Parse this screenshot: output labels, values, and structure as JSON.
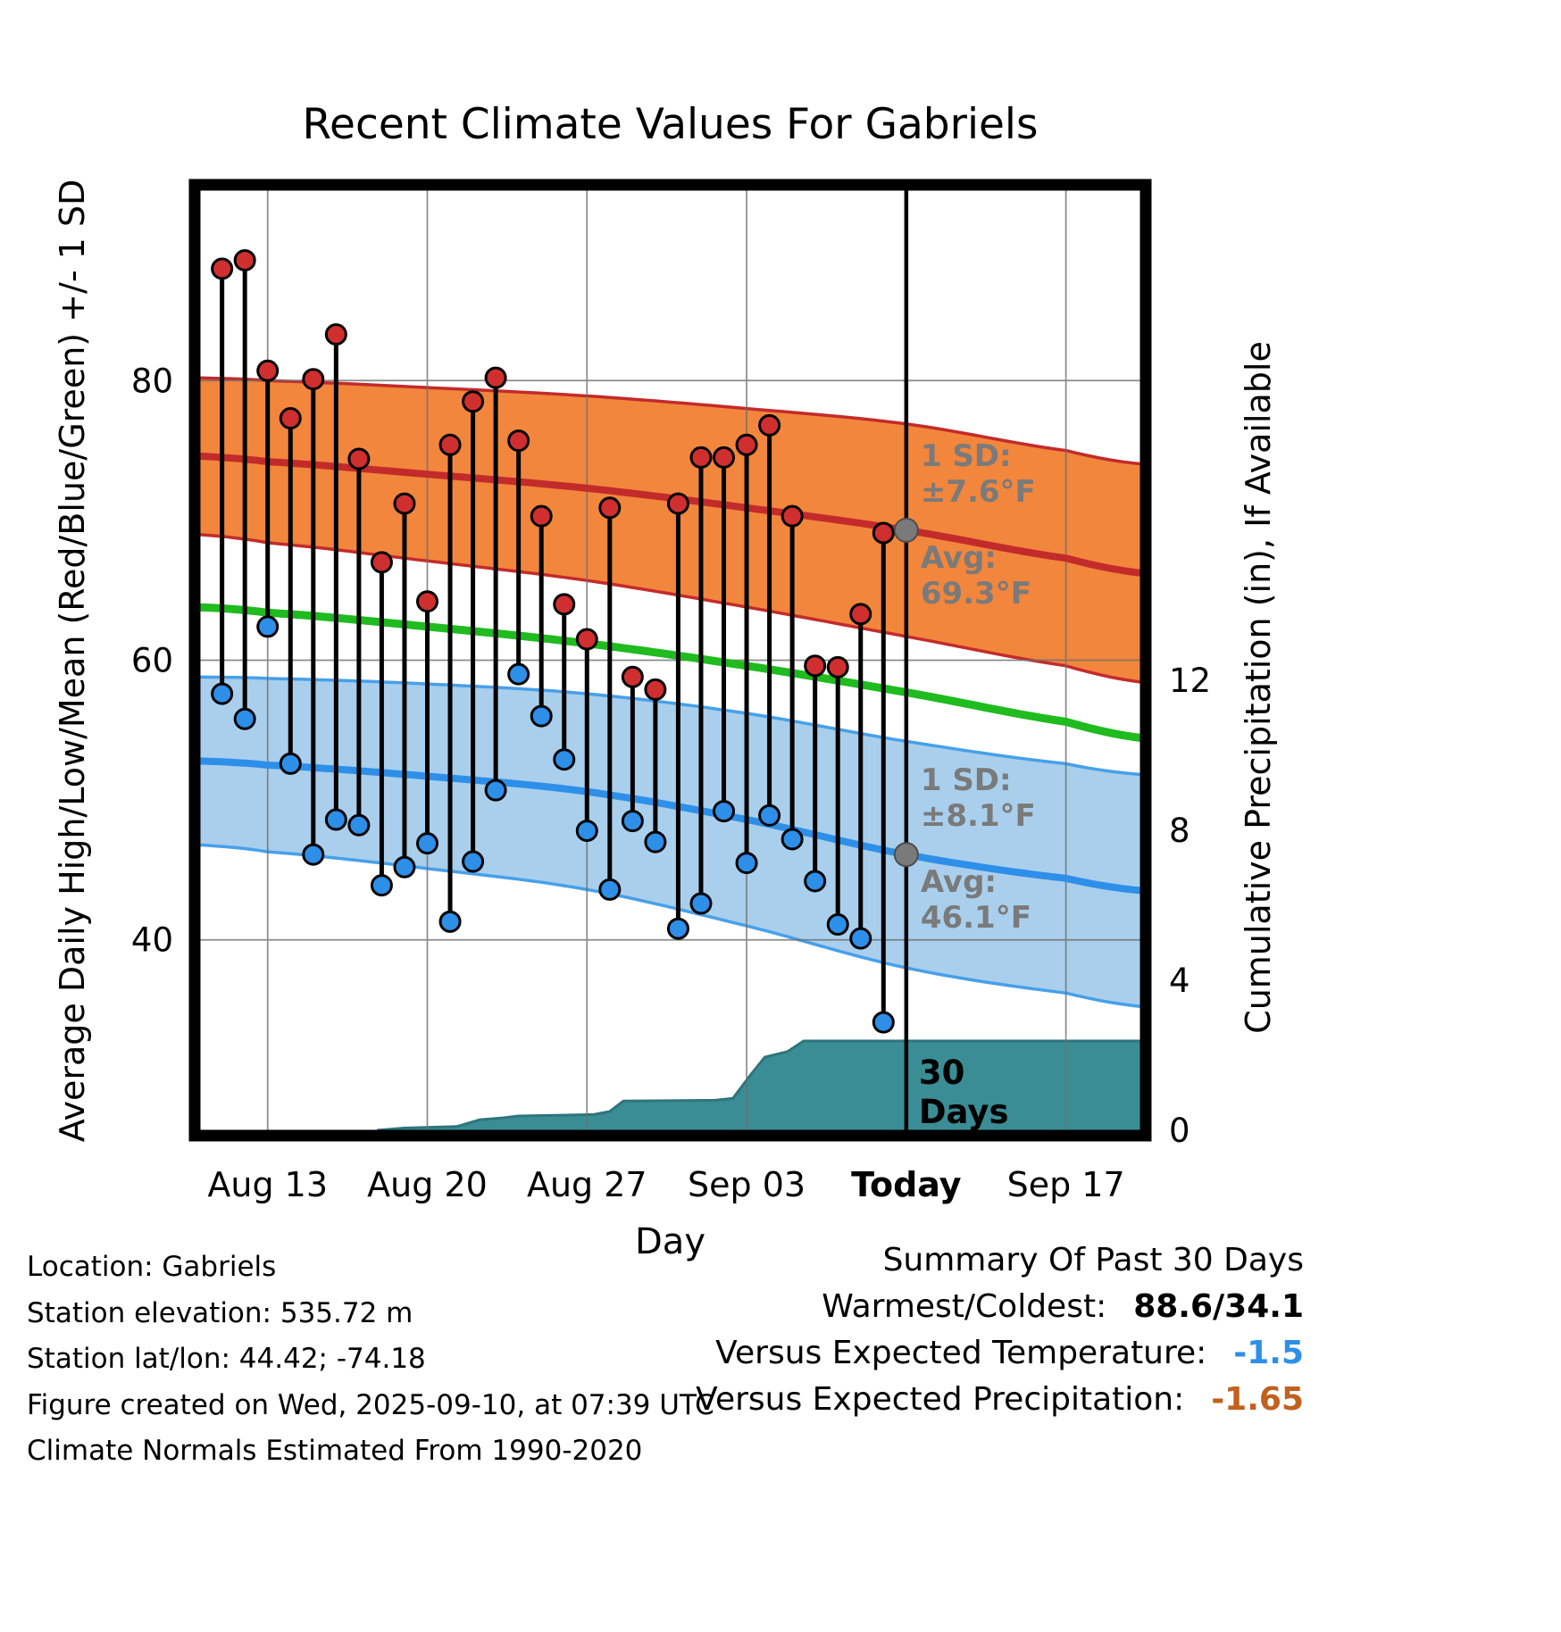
{
  "chart_data": {
    "type": "line",
    "title": "Recent Climate Values For Gabriels",
    "xlabel": "Day",
    "ylabel_left": "Average Daily High/Low/Mean (Red/Blue/Green) +/- 1 SD",
    "ylabel_right": "Cumulative Precipitation (in), If Available",
    "x_ticks": [
      {
        "label": "Aug 13",
        "d": 2,
        "bold": false
      },
      {
        "label": "Aug 20",
        "d": 9,
        "bold": false
      },
      {
        "label": "Aug 27",
        "d": 16,
        "bold": false
      },
      {
        "label": "Sep 03",
        "d": 23,
        "bold": false
      },
      {
        "label": "Today",
        "d": 30,
        "bold": true
      },
      {
        "label": "Sep 17",
        "d": 37,
        "bold": false
      }
    ],
    "temp_axis": {
      "min": 26,
      "max": 94,
      "ticks": [
        80,
        60,
        40
      ]
    },
    "precip_axis": {
      "ticks": [
        12,
        8,
        4,
        0
      ]
    },
    "daily": {
      "dates": [
        "Aug 11",
        "Aug 12",
        "Aug 13",
        "Aug 14",
        "Aug 15",
        "Aug 16",
        "Aug 17",
        "Aug 18",
        "Aug 19",
        "Aug 20",
        "Aug 21",
        "Aug 22",
        "Aug 23",
        "Aug 24",
        "Aug 25",
        "Aug 26",
        "Aug 27",
        "Aug 28",
        "Aug 29",
        "Aug 30",
        "Aug 31",
        "Sep 01",
        "Sep 02",
        "Sep 03",
        "Sep 04",
        "Sep 05",
        "Sep 06",
        "Sep 07",
        "Sep 08",
        "Sep 09"
      ],
      "high": [
        88.0,
        88.6,
        80.7,
        77.3,
        80.1,
        83.3,
        74.4,
        67.0,
        71.2,
        64.2,
        75.4,
        78.5,
        80.2,
        75.7,
        70.3,
        64.0,
        61.5,
        70.9,
        58.8,
        57.9,
        71.2,
        74.5,
        74.5,
        75.4,
        76.8,
        70.3,
        59.6,
        59.5,
        63.3,
        69.1
      ],
      "low": [
        57.6,
        55.8,
        62.4,
        52.6,
        46.1,
        48.6,
        48.2,
        43.9,
        45.2,
        46.9,
        41.3,
        45.6,
        50.7,
        59.0,
        56.0,
        52.9,
        47.8,
        43.6,
        48.5,
        47.0,
        40.8,
        42.6,
        49.2,
        45.5,
        48.9,
        47.2,
        44.2,
        41.1,
        40.1,
        34.1
      ]
    },
    "normals": {
      "d": [
        -1.2,
        2,
        9,
        16,
        23,
        30,
        37,
        40.5
      ],
      "high_upper": [
        80.2,
        80.0,
        79.5,
        78.9,
        78.0,
        76.9,
        75.0,
        74.0
      ],
      "high_avg": [
        74.6,
        74.2,
        73.3,
        72.3,
        70.9,
        69.3,
        67.3,
        66.2
      ],
      "high_lower": [
        69.0,
        68.4,
        67.1,
        65.7,
        63.8,
        61.7,
        59.6,
        58.4
      ],
      "mean": [
        63.8,
        63.4,
        62.4,
        61.2,
        59.6,
        57.7,
        55.6,
        54.4
      ],
      "low_upper": [
        58.8,
        58.7,
        58.3,
        57.6,
        56.2,
        54.2,
        52.6,
        51.8
      ],
      "low_avg": [
        52.8,
        52.5,
        51.7,
        50.6,
        48.6,
        46.1,
        44.4,
        43.5
      ],
      "low_lower": [
        46.8,
        46.3,
        45.1,
        43.6,
        41.0,
        38.0,
        36.2,
        35.2
      ]
    },
    "precip_cumulative": {
      "d": [
        6.8,
        8.0,
        10.3,
        11.3,
        12.3,
        13.0,
        16.3,
        17.0,
        17.6,
        21.6,
        22.4,
        23.2,
        23.8,
        24.8,
        25.5,
        40.5
      ],
      "values": [
        0.0,
        0.06,
        0.1,
        0.28,
        0.33,
        0.38,
        0.42,
        0.5,
        0.78,
        0.8,
        0.85,
        1.5,
        1.95,
        2.1,
        2.38,
        2.38
      ]
    },
    "today": {
      "d": 30,
      "high_avg": 69.3,
      "high_sd": 7.6,
      "low_avg": 46.1,
      "low_sd": 8.1
    },
    "annotations": {
      "high_sd_label": "1 SD:",
      "high_sd_value": "±7.6°F",
      "high_avg_label": "Avg:",
      "high_avg_value": "69.3°F",
      "low_sd_label": "1 SD:",
      "low_sd_value": "±8.1°F",
      "low_avg_label": "Avg:",
      "low_avg_value": "46.1°F",
      "period_line1": "30",
      "period_line2": "Days"
    }
  },
  "footer": {
    "location": "Location: Gabriels",
    "elevation": "Station elevation: 535.72 m",
    "latlon": "Station lat/lon: 44.42; -74.18",
    "created": "Figure created on Wed, 2025-09-10, at 07:39 UTC",
    "normals_note": "Climate Normals Estimated From 1990-2020"
  },
  "summary": {
    "title": "Summary Of Past 30 Days",
    "rows": [
      {
        "label": "Warmest/Coldest:",
        "value": "88.6/34.1",
        "color": "#000000"
      },
      {
        "label": "Versus Expected Temperature:",
        "value": "-1.5",
        "color": "#2E8FE8"
      },
      {
        "label": "Versus Expected Precipitation:",
        "value": "-1.65",
        "color": "#C2601F"
      }
    ]
  },
  "colors": {
    "high_band_fill": "#F2863C",
    "high_edge": "#C32B2B",
    "high_line": "#C32B2B",
    "high_dot": "#D02F2F",
    "mean_line": "#1FBB1F",
    "low_band_fill": "#A9CFED",
    "low_edge": "#47A0E8",
    "low_line": "#2E8FE8",
    "low_dot": "#2E8FE8",
    "precip_fill": "#3A8D95",
    "precip_edge": "#2E757D",
    "stem": "#000000",
    "gray": "#7A7A7A"
  }
}
